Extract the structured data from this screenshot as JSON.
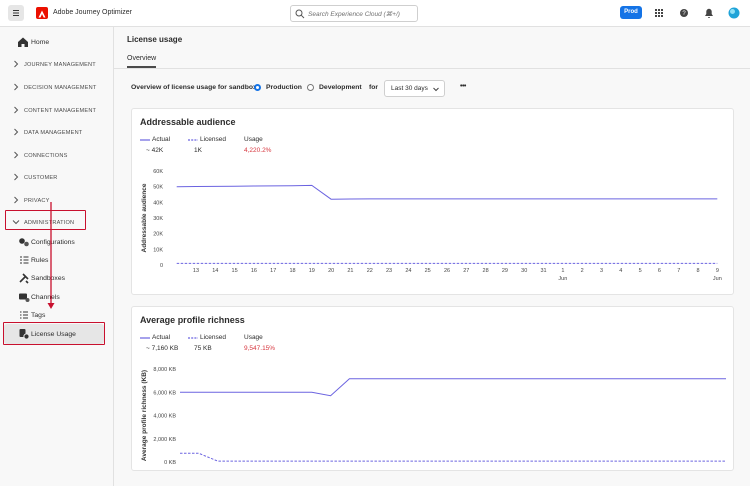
{
  "header": {
    "product": "Adobe Journey Optimizer",
    "search": "Search Experience Cloud (⌘+/)",
    "environment": "Prod"
  },
  "sidebar": {
    "items": [
      {
        "label": "Home"
      },
      {
        "label": "JOURNEY MANAGEMENT",
        "section": true
      },
      {
        "label": "DECISION MANAGEMENT",
        "section": true
      },
      {
        "label": "CONTENT MANAGEMENT",
        "section": true
      },
      {
        "label": "DATA MANAGEMENT",
        "section": true
      },
      {
        "label": "CONNECTIONS",
        "section": true
      },
      {
        "label": "CUSTOMER",
        "section": true
      },
      {
        "label": "PRIVACY",
        "section": true
      },
      {
        "label": "ADMINISTRATION",
        "section": true,
        "expanded": true,
        "highlighted": true
      },
      {
        "label": "Configurations"
      },
      {
        "label": "Rules"
      },
      {
        "label": "Sandboxes"
      },
      {
        "label": "Channels"
      },
      {
        "label": "Tags"
      },
      {
        "label": "License Usage",
        "selected": true,
        "highlighted": true
      }
    ]
  },
  "content": {
    "title": "License usage",
    "tab": "Overview",
    "filter": {
      "label": "Overview of license usage for sandbox",
      "options": [
        "Production",
        "Development"
      ],
      "selected": 0,
      "for": "for",
      "range": "Last 30 days",
      "more": "•••"
    }
  },
  "charts": [
    {
      "type": "line",
      "title": "Addressable audience",
      "y_label": "Addressable audience",
      "categories": [
        null,
        [
          "13"
        ],
        [
          "14"
        ],
        [
          "15"
        ],
        [
          "16"
        ],
        [
          "17"
        ],
        [
          "18"
        ],
        [
          "19"
        ],
        [
          "20"
        ],
        [
          "21"
        ],
        [
          "22"
        ],
        [
          "23"
        ],
        [
          "24"
        ],
        [
          "25"
        ],
        [
          "26"
        ],
        [
          "27"
        ],
        [
          "28"
        ],
        [
          "29"
        ],
        [
          "30"
        ],
        [
          "31"
        ],
        [
          "1",
          "Jun"
        ],
        [
          "2"
        ],
        [
          "3"
        ],
        [
          "4"
        ],
        [
          "5"
        ],
        [
          "6"
        ],
        [
          "7"
        ],
        [
          "8"
        ],
        [
          "9",
          "Jun"
        ]
      ],
      "series": [
        {
          "name": "Actual",
          "summary": "~ 42K",
          "color": "#6b63e0",
          "dashed": false,
          "values": [
            50000,
            50100,
            50200,
            50300,
            50400,
            50500,
            50600,
            50800,
            42000,
            42100,
            42200,
            42200,
            42200,
            42200,
            42200,
            42200,
            42200,
            42200,
            42200,
            42200,
            42200,
            42200,
            42200,
            42200,
            42200,
            42200,
            42200,
            42200,
            42200
          ]
        },
        {
          "name": "Licensed",
          "summary": "1K",
          "color": "#6b63e0",
          "dashed": true,
          "values": [
            1000,
            1000,
            1000,
            1000,
            1000,
            1000,
            1000,
            1000,
            1000,
            1000,
            1000,
            1000,
            1000,
            1000,
            1000,
            1000,
            1000,
            1000,
            1000,
            1000,
            1000,
            1000,
            1000,
            1000,
            1000,
            1000,
            1000,
            1000,
            1000
          ]
        }
      ],
      "usage": {
        "label": "Usage",
        "value": "4,220.2%"
      },
      "ylim": [
        0,
        60000
      ],
      "yticks": [
        0,
        {
          "value": 10000,
          "label": "10K"
        },
        {
          "value": 20000,
          "label": "20K"
        },
        {
          "value": 30000,
          "label": "30K"
        },
        {
          "value": 40000,
          "label": "40K"
        },
        {
          "value": 50000,
          "label": "50K"
        },
        {
          "value": 60000,
          "label": "60K"
        }
      ]
    },
    {
      "type": "line",
      "title": "Average profile richness",
      "y_label": "Average profile richness (KB)",
      "series": [
        {
          "name": "Actual",
          "summary": "~ 7,160 KB",
          "color": "#6b63e0",
          "dashed": false,
          "values": [
            6000,
            6000,
            6000,
            6000,
            6000,
            6000,
            6000,
            6000,
            5700,
            7160,
            7160,
            7160,
            7160,
            7160,
            7160,
            7160,
            7160,
            7160,
            7160,
            7160,
            7160,
            7160,
            7160,
            7160,
            7160,
            7160,
            7160,
            7160,
            7160,
            7160
          ]
        },
        {
          "name": "Licensed",
          "summary": "75 KB",
          "color": "#6b63e0",
          "dashed": true,
          "values": [
            750,
            750,
            75,
            75,
            75,
            75,
            75,
            75,
            75,
            75,
            75,
            75,
            75,
            75,
            75,
            75,
            75,
            75,
            75,
            75,
            75,
            75,
            75,
            75,
            75,
            75,
            75,
            75,
            75,
            75
          ]
        }
      ],
      "usage": {
        "label": "Usage",
        "value": "9,547.15%"
      },
      "ylim": [
        0,
        8000
      ],
      "yticks": [
        {
          "value": 0,
          "label": "0 KB"
        },
        {
          "value": 2000,
          "label": "2,000 KB"
        },
        {
          "value": 4000,
          "label": "4,000 KB"
        },
        {
          "value": 6000,
          "label": "6,000 KB"
        },
        {
          "value": 8000,
          "label": "8,000 KB"
        }
      ]
    }
  ]
}
